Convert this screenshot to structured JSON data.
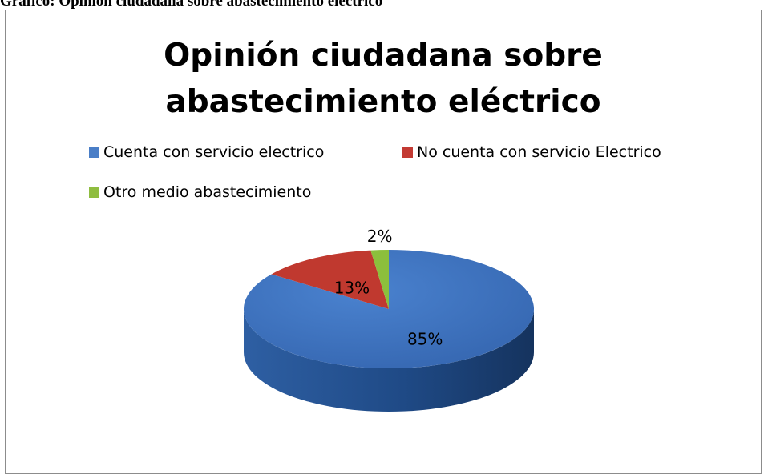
{
  "caption": "Gráfico: Opinión ciudadana sobre abastecimiento eléctrico",
  "chart_data": {
    "type": "pie",
    "title_lines": [
      "Opinión ciudadana sobre",
      "abastecimiento eléctrico"
    ],
    "legend_placement": "top",
    "slices": [
      {
        "name": "Cuenta con servicio electrico",
        "value": 85,
        "label": "85%",
        "color": "#3d73c0",
        "legend_color": "#4a7ec7"
      },
      {
        "name": "No cuenta con servicio Electrico",
        "value": 13,
        "label": "13%",
        "color": "#c0392f",
        "legend_color": "#c33a33"
      },
      {
        "name": "Otro medio abastecimiento",
        "value": 2,
        "label": "2%",
        "color": "#8cbf3c",
        "legend_color": "#8fbd40"
      }
    ]
  }
}
